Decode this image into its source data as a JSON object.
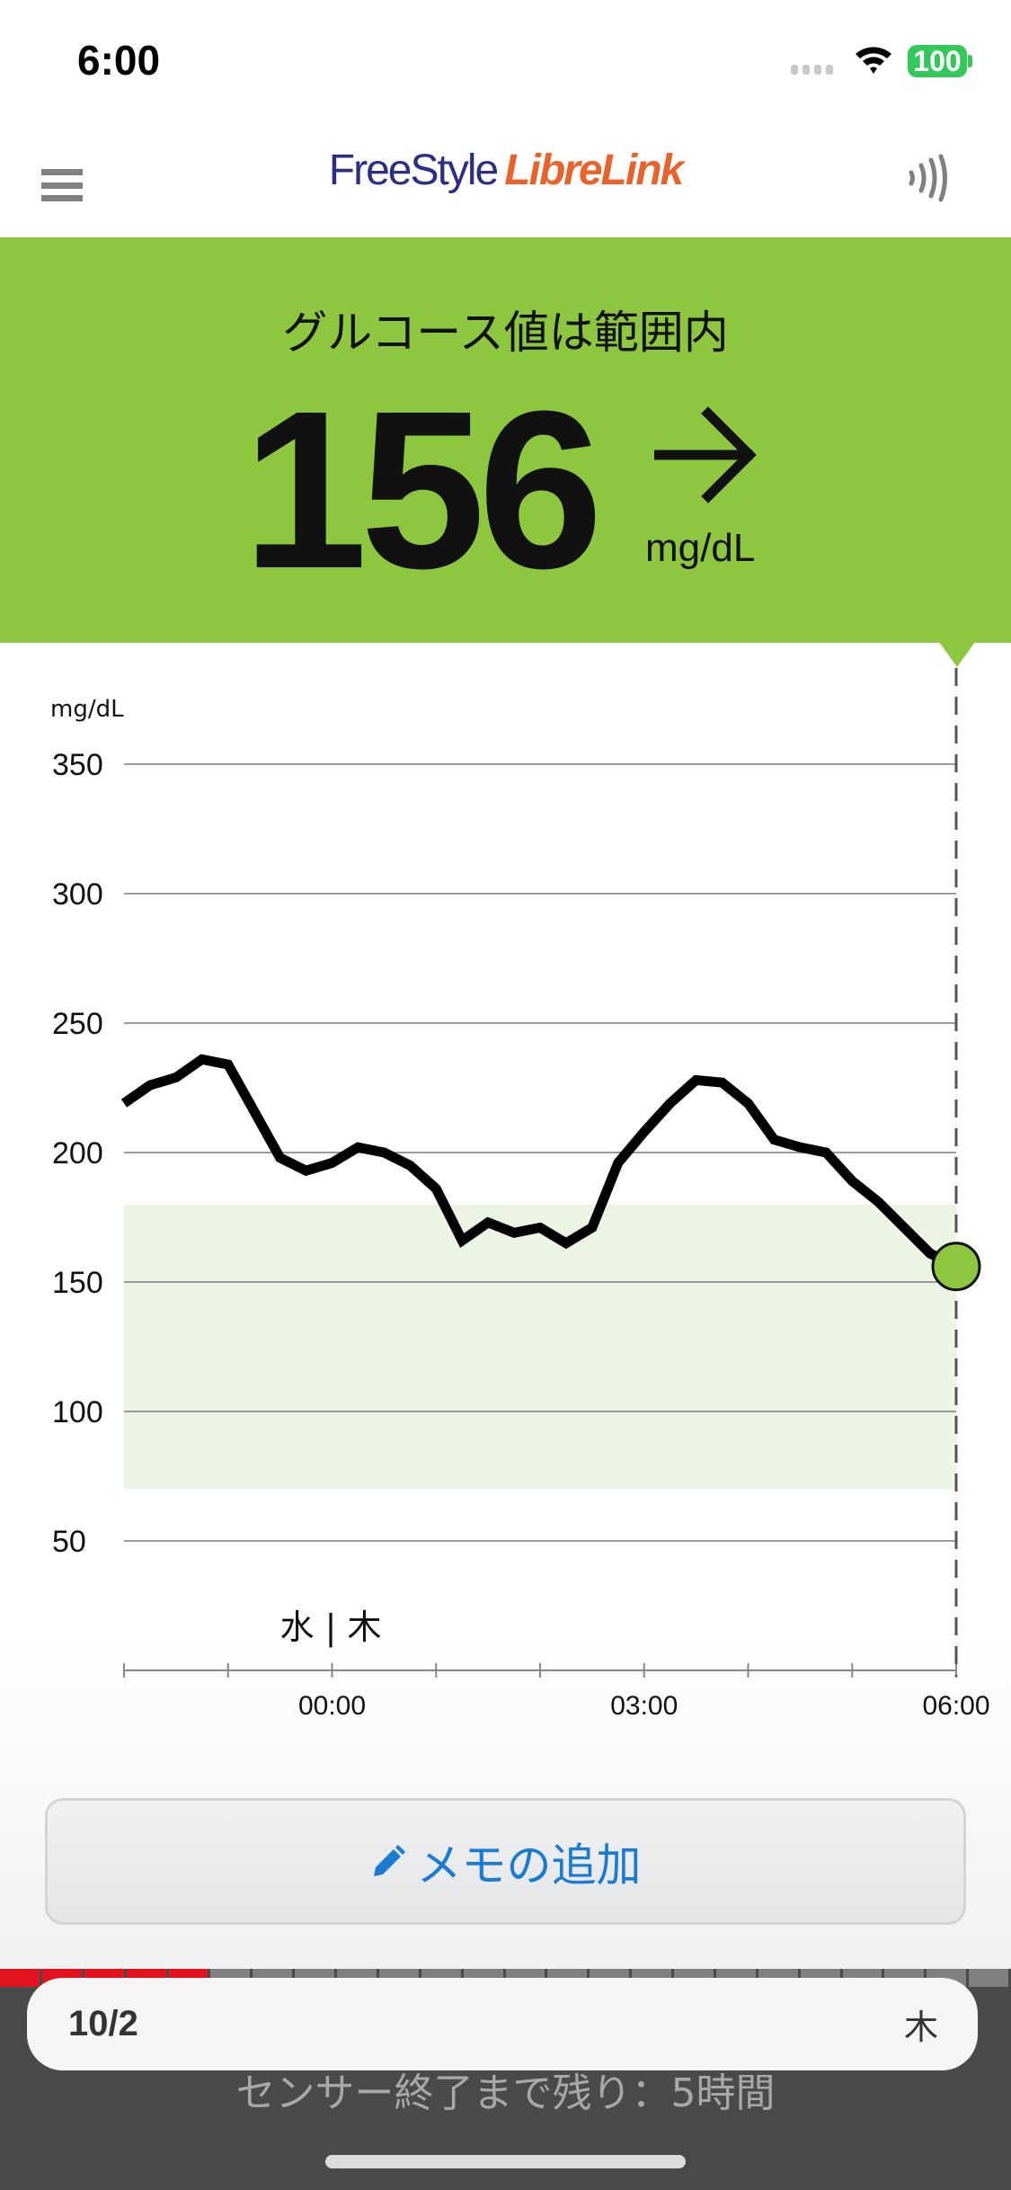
{
  "status_bar": {
    "time": "6:00",
    "battery": "100",
    "battery_color": "#34c759"
  },
  "header": {
    "logo_part1": "FreeStyle",
    "logo_part2": "LibreLink",
    "menu_icon": "hamburger-icon",
    "scan_icon": "nfc-scan-icon"
  },
  "banner": {
    "title": "グルコース値は範囲内",
    "value": "156",
    "unit": "mg/dL",
    "trend": "steady-right-arrow",
    "color": "#8dc63f"
  },
  "chart_data": {
    "type": "line",
    "ylabel": "mg/dL",
    "ylim": [
      0,
      350
    ],
    "yticks": [
      "350",
      "300",
      "250",
      "200",
      "150",
      "100",
      "50"
    ],
    "ytick_values": [
      350,
      300,
      250,
      200,
      150,
      100,
      50
    ],
    "xlim": [
      "22:00",
      "06:00"
    ],
    "xticks": [
      "00:00",
      "03:00",
      "06:00"
    ],
    "day_divider": "水 | 木",
    "target_range": [
      70,
      180
    ],
    "target_color": "#ecf5e3",
    "grid": true,
    "series": [
      {
        "x": [
          "22:00",
          "22:15",
          "22:30",
          "22:45",
          "23:00",
          "23:15",
          "23:30",
          "23:45",
          "00:00",
          "00:15",
          "00:30",
          "00:45",
          "01:00",
          "01:15",
          "01:30",
          "01:45",
          "02:00",
          "02:15",
          "02:30",
          "02:45",
          "03:00",
          "03:15",
          "03:30",
          "03:45",
          "04:00",
          "04:15",
          "04:30",
          "04:45",
          "05:00",
          "05:15",
          "05:30",
          "05:45",
          "06:00"
        ],
        "values": [
          219,
          226,
          229,
          236,
          234,
          216,
          198,
          193,
          196,
          202,
          200,
          195,
          186,
          166,
          173,
          169,
          171,
          165,
          171,
          196,
          208,
          219,
          228,
          227,
          219,
          205,
          202,
          200,
          189,
          181,
          171,
          161,
          156
        ]
      }
    ],
    "current_point": {
      "x": "06:00",
      "value": 156
    }
  },
  "memo_button": {
    "label": "メモの追加",
    "icon": "pencil-icon"
  },
  "footer": {
    "date": "10/2",
    "weekday": "木",
    "sensor_remaining": "センサー終了まで残り：5時間",
    "sensor_segments_total": 24,
    "sensor_segments_used": 5
  }
}
